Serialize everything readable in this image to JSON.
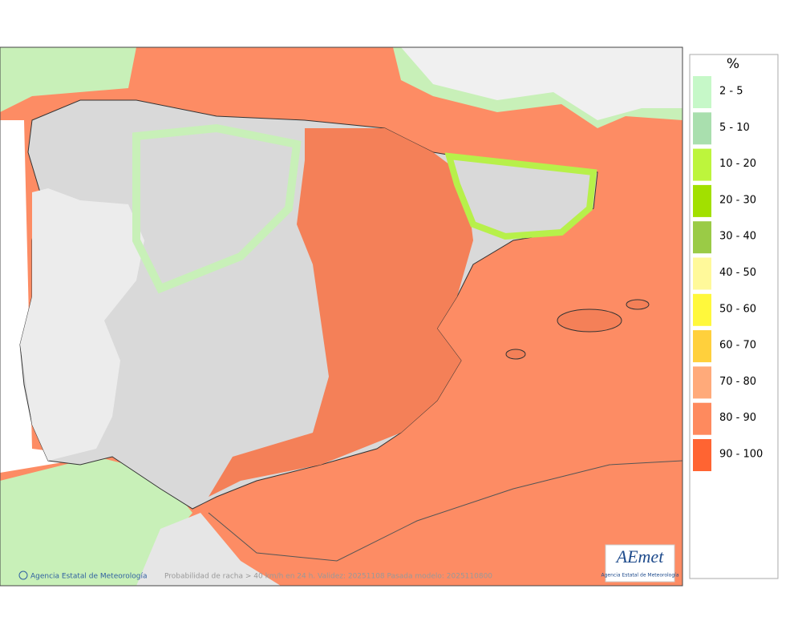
{
  "map": {
    "caption": "Probabilidad de racha > 40 km/h en 24 h. Validez: 20251108 Pasada modelo: 2025110800",
    "credit": "Agencia Estatal de Meteorología"
  },
  "legend": {
    "title": "%",
    "items": [
      {
        "label": "2 - 5",
        "color": "#c6f8c8"
      },
      {
        "label": "5 - 10",
        "color": "#a9dfae"
      },
      {
        "label": "10 - 20",
        "color": "#bdf53c"
      },
      {
        "label": "20 - 30",
        "color": "#a2e000"
      },
      {
        "label": "30 - 40",
        "color": "#9acb46"
      },
      {
        "label": "40 - 50",
        "color": "#fff99a"
      },
      {
        "label": "50 - 60",
        "color": "#fff83c"
      },
      {
        "label": "60 - 70",
        "color": "#ffd03c"
      },
      {
        "label": "70 - 80",
        "color": "#ffaa7a"
      },
      {
        "label": "80 - 90",
        "color": "#fe8a5e"
      },
      {
        "label": "90 - 100",
        "color": "#ff6432"
      }
    ]
  },
  "logo": {
    "name": "AEmet",
    "subtitle": "Agencia Estatal de Meteorología"
  }
}
